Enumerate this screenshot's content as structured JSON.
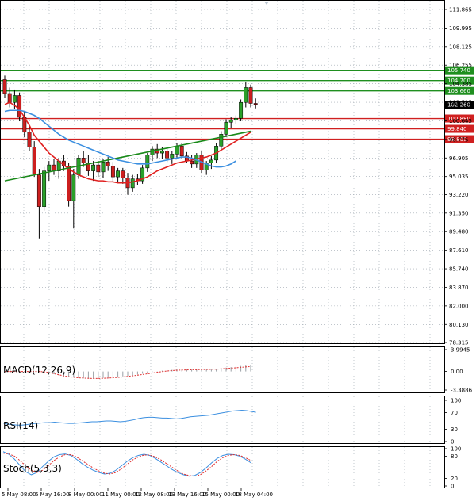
{
  "colors": {
    "grid": "#9aa3ad",
    "bull": "#2aa02a",
    "bear": "#cc1f1f",
    "ma_fast": "#e02020",
    "ma_mid": "#1a8a1a",
    "ma_slow": "#3b8fe0",
    "res_line": "#1f8f1f",
    "sup_line": "#d02020",
    "macd_signal": "#e03030",
    "macd_hist": "#9aa0a6",
    "rsi": "#3b8fe0",
    "stoch_main": "#3b8fe0",
    "stoch_signal": "#e03030",
    "current": "#000000"
  },
  "chart_data": [
    {
      "type": "candlestick",
      "y_ticks": [
        "111.865",
        "109.995",
        "108.125",
        "106.255",
        "104.385",
        "102.515",
        "100.645",
        "98.775",
        "96.905",
        "95.035",
        "93.220",
        "91.350",
        "89.480",
        "87.610",
        "85.740",
        "83.870",
        "82.000",
        "80.130",
        "78.315"
      ],
      "ylim": [
        78.315,
        111.865
      ],
      "x_labels": [
        "5 May 08:00",
        "6 May 16:00",
        "8 May 00:00",
        "11 May 00:00",
        "12 May 08:00",
        "13 May 16:00",
        "15 May 00:00",
        "18 May 04:00"
      ],
      "current_price": "102.260",
      "resistance_levels": [
        "105.740",
        "104.700",
        "103.660"
      ],
      "support_levels": [
        "100.880",
        "99.840",
        "98.800"
      ],
      "candles": [
        [
          104.8,
          105.2,
          103.0,
          103.4
        ],
        [
          103.4,
          104.0,
          102.0,
          102.5
        ],
        [
          102.5,
          103.8,
          101.8,
          103.2
        ],
        [
          103.2,
          103.5,
          100.6,
          101.0
        ],
        [
          101.0,
          101.6,
          99.0,
          99.5
        ],
        [
          99.5,
          100.2,
          97.6,
          98.0
        ],
        [
          98.0,
          98.6,
          95.0,
          95.3
        ],
        [
          95.2,
          95.8,
          88.8,
          92.0
        ],
        [
          92.0,
          96.0,
          91.6,
          95.6
        ],
        [
          95.6,
          96.6,
          94.6,
          96.2
        ],
        [
          96.2,
          96.8,
          95.2,
          95.6
        ],
        [
          95.6,
          96.9,
          94.8,
          96.6
        ],
        [
          96.6,
          97.2,
          95.6,
          96.1
        ],
        [
          96.1,
          96.4,
          92.0,
          92.6
        ],
        [
          92.6,
          95.8,
          89.8,
          95.2
        ],
        [
          95.2,
          97.2,
          94.8,
          96.9
        ],
        [
          96.9,
          97.6,
          96.0,
          96.4
        ],
        [
          96.4,
          97.2,
          95.1,
          95.6
        ],
        [
          95.6,
          96.6,
          94.6,
          96.2
        ],
        [
          96.2,
          96.6,
          95.0,
          95.5
        ],
        [
          95.5,
          96.8,
          94.9,
          96.5
        ],
        [
          96.5,
          97.0,
          95.6,
          96.1
        ],
        [
          96.1,
          96.5,
          94.5,
          95.0
        ],
        [
          95.0,
          95.9,
          94.5,
          95.6
        ],
        [
          95.6,
          95.9,
          94.3,
          94.9
        ],
        [
          94.9,
          95.4,
          93.2,
          93.9
        ],
        [
          93.9,
          95.2,
          93.5,
          94.8
        ],
        [
          94.8,
          95.3,
          94.2,
          94.6
        ],
        [
          94.6,
          96.2,
          94.3,
          95.9
        ],
        [
          95.9,
          97.4,
          95.5,
          97.2
        ],
        [
          97.2,
          98.1,
          96.6,
          97.8
        ],
        [
          97.8,
          98.3,
          96.9,
          97.4
        ],
        [
          97.4,
          98.0,
          96.8,
          97.6
        ],
        [
          97.6,
          97.9,
          96.5,
          96.9
        ],
        [
          96.9,
          97.6,
          96.3,
          97.3
        ],
        [
          97.3,
          98.4,
          96.9,
          98.1
        ],
        [
          98.1,
          98.4,
          96.8,
          97.1
        ],
        [
          97.1,
          97.5,
          96.4,
          96.6
        ],
        [
          96.6,
          97.2,
          95.9,
          96.3
        ],
        [
          96.3,
          97.4,
          95.9,
          97.2
        ],
        [
          97.2,
          97.6,
          95.4,
          95.7
        ],
        [
          95.7,
          96.6,
          95.2,
          96.4
        ],
        [
          96.4,
          97.1,
          95.8,
          96.7
        ],
        [
          96.7,
          98.4,
          96.4,
          98.1
        ],
        [
          98.1,
          99.6,
          97.8,
          99.3
        ],
        [
          99.3,
          100.8,
          99.0,
          100.5
        ],
        [
          100.5,
          101.0,
          99.9,
          100.7
        ],
        [
          100.7,
          101.2,
          100.3,
          100.9
        ],
        [
          100.9,
          102.8,
          100.6,
          102.5
        ],
        [
          102.5,
          104.6,
          102.0,
          104.0
        ],
        [
          104.0,
          104.3,
          102.0,
          102.4
        ],
        [
          102.4,
          102.9,
          101.9,
          102.3
        ]
      ],
      "series": [
        {
          "name": "",
          "values": [
            102.3,
            102.5,
            102.2,
            101.8,
            101.0,
            100.2,
            99.2,
            98.6,
            98.0,
            97.4,
            97.0,
            96.6,
            96.2,
            95.8,
            95.5,
            95.2,
            95.0,
            94.8,
            94.7,
            94.6,
            94.6,
            94.5,
            94.5,
            94.4,
            94.4,
            94.4,
            94.5,
            94.6,
            94.8,
            95.0,
            95.3,
            95.6,
            95.8,
            96.0,
            96.2,
            96.4,
            96.5,
            96.6,
            96.7,
            96.8,
            96.9,
            97.0,
            97.2,
            97.4,
            97.7,
            98.0,
            98.3,
            98.6,
            98.9,
            99.2,
            99.5
          ]
        },
        {
          "name": "",
          "values": [
            94.6,
            94.7,
            94.8,
            94.9,
            95.0,
            95.1,
            95.2,
            95.3,
            95.4,
            95.5,
            95.6,
            95.7,
            95.8,
            95.9,
            96.0,
            96.1,
            96.2,
            96.3,
            96.4,
            96.5,
            96.6,
            96.7,
            96.8,
            96.9,
            97.0,
            97.1,
            97.2,
            97.3,
            97.4,
            97.5,
            97.6,
            97.7,
            97.8,
            97.9,
            98.0,
            98.1,
            98.2,
            98.3,
            98.4,
            98.5,
            98.6,
            98.7,
            98.8,
            98.9,
            99.0,
            99.1,
            99.2,
            99.3,
            99.4,
            99.5,
            99.6
          ]
        },
        {
          "name": "",
          "values": [
            101.6,
            101.7,
            101.7,
            101.7,
            101.6,
            101.4,
            101.2,
            100.9,
            100.5,
            100.1,
            99.7,
            99.3,
            99.0,
            98.7,
            98.5,
            98.3,
            98.1,
            97.9,
            97.7,
            97.5,
            97.3,
            97.1,
            96.9,
            96.7,
            96.6,
            96.5,
            96.4,
            96.3,
            96.3,
            96.3,
            96.4,
            96.5,
            96.6,
            96.7,
            96.8,
            96.9,
            97.0,
            97.0,
            96.9,
            96.7,
            96.5,
            96.3,
            96.1,
            96.0,
            96.0,
            96.1,
            96.3,
            96.6
          ]
        }
      ]
    },
    {
      "type": "macd",
      "label": "MACD(12,26,9)",
      "y_ticks": [
        "3.9945",
        "0.00",
        "-3.3886"
      ],
      "ylim": [
        -3.3886,
        3.9945
      ],
      "hist": [
        0,
        0,
        0,
        0,
        0,
        0,
        0,
        0,
        -0.1,
        -0.3,
        -0.5,
        -0.7,
        -0.9,
        -1.0,
        -1.1,
        -1.2,
        -1.25,
        -1.3,
        -1.3,
        -1.25,
        -1.2,
        -1.15,
        -1.1,
        -1.0,
        -0.9,
        -0.8,
        -0.7,
        -0.55,
        -0.4,
        -0.25,
        -0.1,
        0.05,
        0.15,
        0.25,
        0.3,
        0.35,
        0.35,
        0.35,
        0.35,
        0.4,
        0.4,
        0.4,
        0.45,
        0.5,
        0.6,
        0.7,
        0.8,
        0.9,
        1.0,
        1.1,
        1.1
      ],
      "signal": [
        0,
        0,
        0,
        0,
        0,
        0,
        0,
        0,
        -0.05,
        -0.2,
        -0.4,
        -0.6,
        -0.8,
        -0.95,
        -1.05,
        -1.15,
        -1.2,
        -1.25,
        -1.28,
        -1.28,
        -1.25,
        -1.2,
        -1.15,
        -1.08,
        -1.0,
        -0.9,
        -0.8,
        -0.68,
        -0.55,
        -0.42,
        -0.28,
        -0.15,
        -0.02,
        0.08,
        0.16,
        0.22,
        0.26,
        0.29,
        0.31,
        0.33,
        0.35,
        0.37,
        0.39,
        0.42,
        0.47,
        0.53,
        0.6,
        0.67,
        0.75,
        0.83,
        0.9
      ]
    },
    {
      "type": "rsi",
      "label": "RSI(14)",
      "y_ticks": [
        "100",
        "70",
        "30",
        "0"
      ],
      "ylim": [
        0,
        100
      ],
      "values": [
        45,
        42,
        41,
        40,
        40,
        41,
        43,
        44,
        45,
        46,
        46,
        47,
        46,
        45,
        44,
        44,
        45,
        46,
        47,
        48,
        48,
        49,
        50,
        50,
        49,
        48,
        49,
        51,
        53,
        56,
        58,
        59,
        59,
        58,
        57,
        57,
        56,
        55,
        56,
        58,
        60,
        61,
        62,
        63,
        64,
        66,
        68,
        70,
        72,
        74,
        75,
        76,
        75,
        73,
        71
      ]
    },
    {
      "type": "stochastic",
      "label": "Stoch(5,3,3)",
      "y_ticks": [
        "100",
        "80",
        "20",
        "0"
      ],
      "ylim": [
        0,
        100
      ],
      "main": [
        92,
        85,
        72,
        55,
        38,
        30,
        36,
        52,
        66,
        78,
        84,
        86,
        82,
        72,
        60,
        50,
        42,
        36,
        32,
        34,
        42,
        54,
        66,
        76,
        82,
        85,
        82,
        74,
        64,
        54,
        44,
        36,
        30,
        26,
        28,
        36,
        48,
        62,
        74,
        82,
        85,
        84,
        80,
        72,
        62
      ],
      "signal": [
        88,
        86,
        80,
        68,
        54,
        42,
        36,
        42,
        54,
        68,
        78,
        84,
        84,
        78,
        68,
        58,
        48,
        40,
        34,
        32,
        36,
        46,
        58,
        70,
        78,
        83,
        83,
        78,
        70,
        60,
        50,
        40,
        32,
        28,
        26,
        30,
        40,
        52,
        66,
        76,
        82,
        84,
        82,
        76,
        68
      ]
    }
  ]
}
